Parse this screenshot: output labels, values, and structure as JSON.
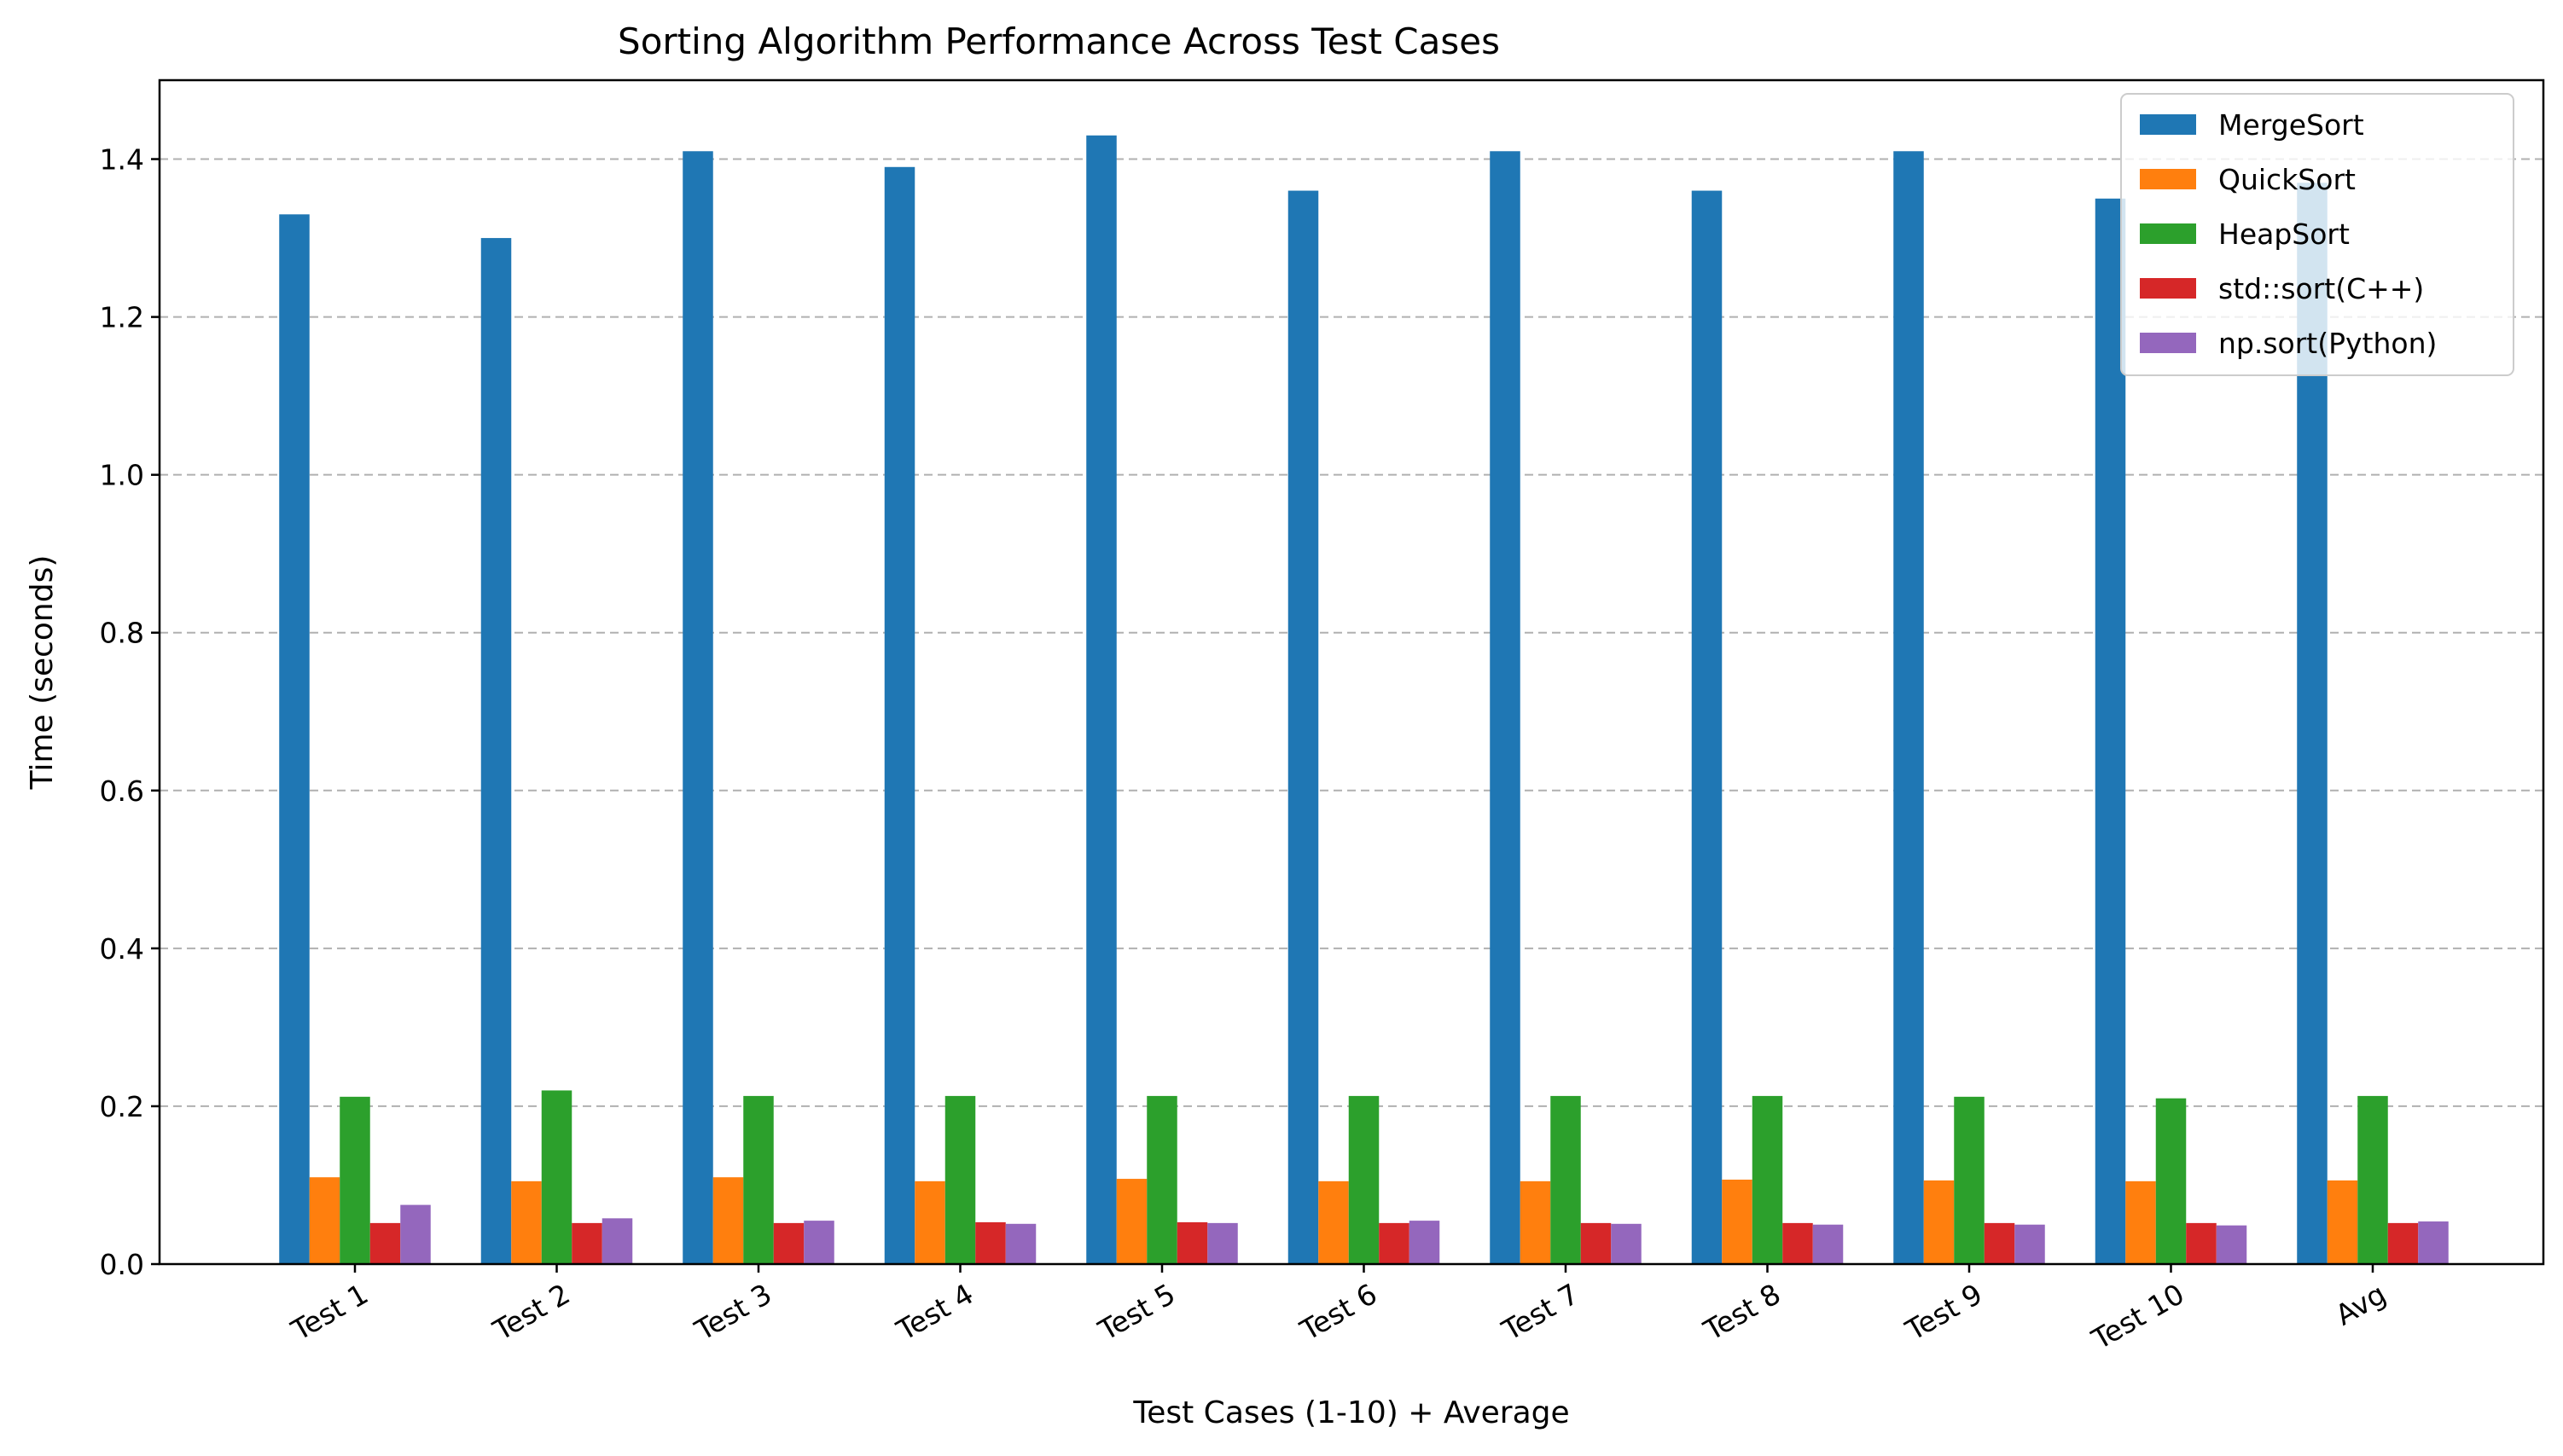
{
  "chart_data": {
    "type": "bar",
    "title": "Sorting Algorithm Performance Across Test Cases",
    "xlabel": "Test Cases (1-10) + Average",
    "ylabel": "Time (seconds)",
    "ylim": [
      0,
      1.5
    ],
    "yticks": [
      "0.0",
      "0.2",
      "0.4",
      "0.6",
      "0.8",
      "1.0",
      "1.2",
      "1.4"
    ],
    "grid": "horizontal dashed",
    "legend_position": "top-right",
    "categories": [
      "Test 1",
      "Test 2",
      "Test 3",
      "Test 4",
      "Test 5",
      "Test 6",
      "Test 7",
      "Test 8",
      "Test 9",
      "Test 10",
      "Avg"
    ],
    "series": [
      {
        "name": "MergeSort",
        "color": "#1f77b4",
        "values": [
          1.33,
          1.3,
          1.41,
          1.39,
          1.43,
          1.36,
          1.41,
          1.36,
          1.41,
          1.35,
          1.37
        ]
      },
      {
        "name": "QuickSort",
        "color": "#ff7f0e",
        "values": [
          0.11,
          0.105,
          0.11,
          0.105,
          0.108,
          0.105,
          0.105,
          0.107,
          0.106,
          0.105,
          0.106
        ]
      },
      {
        "name": "HeapSort",
        "color": "#2ca02c",
        "values": [
          0.212,
          0.22,
          0.213,
          0.213,
          0.213,
          0.213,
          0.213,
          0.213,
          0.212,
          0.21,
          0.213
        ]
      },
      {
        "name": "std::sort(C++)",
        "color": "#d62728",
        "values": [
          0.052,
          0.052,
          0.052,
          0.053,
          0.053,
          0.052,
          0.052,
          0.052,
          0.052,
          0.052,
          0.052
        ]
      },
      {
        "name": "np.sort(Python)",
        "color": "#9467bd",
        "values": [
          0.075,
          0.058,
          0.055,
          0.051,
          0.052,
          0.055,
          0.051,
          0.05,
          0.05,
          0.049,
          0.054
        ]
      }
    ]
  }
}
